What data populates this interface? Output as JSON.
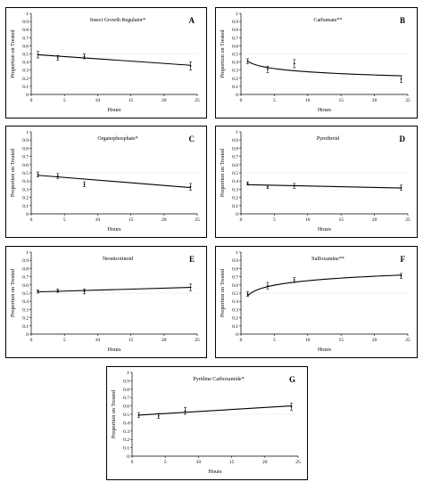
{
  "chart_data": [
    {
      "panel": "A",
      "type": "scatter",
      "title": "Insect Growth Regulator*",
      "letter": "A",
      "xlabel": "Hours",
      "ylabel": "Proportion on Treated",
      "xlim": [
        0,
        25
      ],
      "ylim": [
        0,
        1
      ],
      "xticks": [
        "0",
        "5",
        "10",
        "15",
        "20",
        "25"
      ],
      "yticks": [
        "0",
        "0.1",
        "0.2",
        "0.3",
        "0.4",
        "0.5",
        "0.6",
        "0.7",
        "0.8",
        "0.9",
        "1"
      ],
      "points": [
        {
          "x": 1,
          "y": 0.49,
          "err": 0.04
        },
        {
          "x": 4,
          "y": 0.45,
          "err": 0.03
        },
        {
          "x": 8,
          "y": 0.47,
          "err": 0.03
        },
        {
          "x": 24,
          "y": 0.35,
          "err": 0.05
        }
      ],
      "fit": {
        "kind": "linear",
        "x": [
          1,
          24
        ],
        "y": [
          0.49,
          0.36
        ]
      }
    },
    {
      "panel": "B",
      "type": "scatter",
      "title": "Carbamate**",
      "letter": "B",
      "xlabel": "Hours",
      "ylabel": "Proportion on Treated",
      "xlim": [
        0,
        25
      ],
      "ylim": [
        0,
        1
      ],
      "xticks": [
        "0",
        "5",
        "10",
        "15",
        "20",
        "25"
      ],
      "yticks": [
        "0",
        "0.1",
        "0.2",
        "0.3",
        "0.4",
        "0.5",
        "0.6",
        "0.7",
        "0.8",
        "0.9",
        "1"
      ],
      "points": [
        {
          "x": 1,
          "y": 0.41,
          "err": 0.03
        },
        {
          "x": 4,
          "y": 0.31,
          "err": 0.04
        },
        {
          "x": 8,
          "y": 0.38,
          "err": 0.05
        },
        {
          "x": 24,
          "y": 0.19,
          "err": 0.04
        }
      ],
      "fit": {
        "kind": "log",
        "x": [
          1,
          24
        ],
        "y": [
          0.41,
          0.23
        ]
      }
    },
    {
      "panel": "C",
      "type": "scatter",
      "title": "Organophosphate*",
      "letter": "C",
      "xlabel": "Hours",
      "ylabel": "Proportion on Treated",
      "xlim": [
        0,
        25
      ],
      "ylim": [
        0,
        1
      ],
      "xticks": [
        "0",
        "5",
        "10",
        "15",
        "20",
        "25"
      ],
      "yticks": [
        "0",
        "0.1",
        "0.2",
        "0.3",
        "0.4",
        "0.5",
        "0.6",
        "0.7",
        "0.8",
        "0.9",
        "1"
      ],
      "points": [
        {
          "x": 1,
          "y": 0.48,
          "err": 0.03
        },
        {
          "x": 4,
          "y": 0.46,
          "err": 0.03
        },
        {
          "x": 8,
          "y": 0.36,
          "err": 0.03
        },
        {
          "x": 24,
          "y": 0.33,
          "err": 0.04
        }
      ],
      "fit": {
        "kind": "linear",
        "x": [
          1,
          24
        ],
        "y": [
          0.47,
          0.32
        ]
      }
    },
    {
      "panel": "D",
      "type": "scatter",
      "title": "Pyrethroid",
      "letter": "D",
      "xlabel": "Hours",
      "ylabel": "Proportion on Treated",
      "xlim": [
        0,
        25
      ],
      "ylim": [
        0,
        1
      ],
      "xticks": [
        "0",
        "5",
        "10",
        "15",
        "20",
        "25"
      ],
      "yticks": [
        "0",
        "0.1",
        "0.2",
        "0.3",
        "0.4",
        "0.5",
        "0.6",
        "0.7",
        "0.8",
        "0.9",
        "1"
      ],
      "points": [
        {
          "x": 1,
          "y": 0.37,
          "err": 0.02
        },
        {
          "x": 4,
          "y": 0.33,
          "err": 0.02
        },
        {
          "x": 8,
          "y": 0.34,
          "err": 0.03
        },
        {
          "x": 24,
          "y": 0.32,
          "err": 0.03
        }
      ],
      "fit": {
        "kind": "linear",
        "x": [
          1,
          24
        ],
        "y": [
          0.355,
          0.315
        ]
      }
    },
    {
      "panel": "E",
      "type": "scatter",
      "title": "Neonicotinoid",
      "letter": "E",
      "xlabel": "Hours",
      "ylabel": "Proportion on Treated",
      "xlim": [
        0,
        25
      ],
      "ylim": [
        0,
        1
      ],
      "xticks": [
        "0",
        "5",
        "10",
        "15",
        "20",
        "25"
      ],
      "yticks": [
        "0",
        "0.1",
        "0.2",
        "0.3",
        "0.4",
        "0.5",
        "0.6",
        "0.7",
        "0.8",
        "0.9",
        "1"
      ],
      "points": [
        {
          "x": 1,
          "y": 0.52,
          "err": 0.02
        },
        {
          "x": 4,
          "y": 0.53,
          "err": 0.02
        },
        {
          "x": 8,
          "y": 0.52,
          "err": 0.03
        },
        {
          "x": 24,
          "y": 0.57,
          "err": 0.04
        }
      ],
      "fit": {
        "kind": "linear",
        "x": [
          1,
          24
        ],
        "y": [
          0.515,
          0.57
        ]
      }
    },
    {
      "panel": "F",
      "type": "scatter",
      "title": "Sulfoxamine**",
      "letter": "F",
      "xlabel": "Hours",
      "ylabel": "Proportion on Treated",
      "xlim": [
        0,
        25
      ],
      "ylim": [
        0,
        1
      ],
      "xticks": [
        "0",
        "5",
        "10",
        "15",
        "20",
        "25"
      ],
      "yticks": [
        "0",
        "0.1",
        "0.2",
        "0.3",
        "0.4",
        "0.5",
        "0.6",
        "0.7",
        "0.8",
        "0.9",
        "1"
      ],
      "points": [
        {
          "x": 1,
          "y": 0.49,
          "err": 0.03
        },
        {
          "x": 4,
          "y": 0.59,
          "err": 0.04
        },
        {
          "x": 8,
          "y": 0.66,
          "err": 0.03
        },
        {
          "x": 24,
          "y": 0.71,
          "err": 0.03
        }
      ],
      "fit": {
        "kind": "log",
        "x": [
          1,
          24
        ],
        "y": [
          0.47,
          0.72
        ]
      }
    },
    {
      "panel": "G",
      "type": "scatter",
      "title": "Pyridine Carboxamide*",
      "letter": "G",
      "xlabel": "Hours",
      "ylabel": "Proportion on Treated",
      "xlim": [
        0,
        25
      ],
      "ylim": [
        0,
        1
      ],
      "xticks": [
        "0",
        "5",
        "10",
        "15",
        "20",
        "25"
      ],
      "yticks": [
        "0",
        "0.1",
        "0.2",
        "0.3",
        "0.4",
        "0.5",
        "0.6",
        "0.7",
        "0.8",
        "0.9",
        "1"
      ],
      "points": [
        {
          "x": 1,
          "y": 0.49,
          "err": 0.03
        },
        {
          "x": 4,
          "y": 0.48,
          "err": 0.03
        },
        {
          "x": 8,
          "y": 0.54,
          "err": 0.04
        },
        {
          "x": 24,
          "y": 0.59,
          "err": 0.04
        }
      ],
      "fit": {
        "kind": "linear",
        "x": [
          1,
          24
        ],
        "y": [
          0.49,
          0.6
        ]
      }
    }
  ]
}
